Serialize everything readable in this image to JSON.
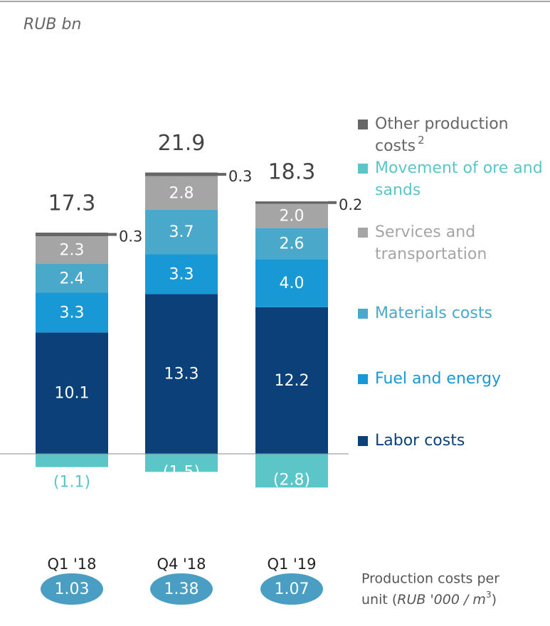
{
  "chart_data": {
    "type": "bar",
    "stacked": true,
    "subtitle": "RUB bn",
    "categories": [
      "Q1 '18",
      "Q4 '18",
      "Q1 '19"
    ],
    "series": [
      {
        "name": "Labor costs",
        "color": "#0b4078",
        "values": [
          10.1,
          13.3,
          12.2
        ]
      },
      {
        "name": "Fuel and energy",
        "color": "#1899d6",
        "values": [
          3.3,
          3.3,
          4.0
        ],
        "value_labels": [
          "3.3",
          "3.3",
          "4.0"
        ]
      },
      {
        "name": "Materials costs",
        "color": "#4aa8ca",
        "values": [
          2.4,
          3.7,
          2.6
        ]
      },
      {
        "name": "Services and transportation",
        "color": "#a5a5a5",
        "values": [
          2.3,
          2.8,
          2.0
        ],
        "value_labels": [
          "2.3",
          "2.8",
          "2.0"
        ]
      },
      {
        "name": "Other production costs",
        "name_footnote": "2",
        "color": "#666666",
        "values": [
          0.3,
          0.3,
          0.2
        ]
      },
      {
        "name": "Movement of ore and sands",
        "color": "#5cc5c8",
        "values": [
          -1.1,
          -1.5,
          -2.8
        ],
        "value_labels": [
          "(1.1)",
          "(1.5)",
          "(2.8)"
        ]
      }
    ],
    "totals": [
      17.3,
      21.9,
      18.3
    ],
    "unit_costs": [
      1.03,
      1.38,
      1.07
    ],
    "unit_label": [
      "Production costs per",
      "unit (",
      "RUB '000 / m",
      "3",
      ")"
    ]
  }
}
